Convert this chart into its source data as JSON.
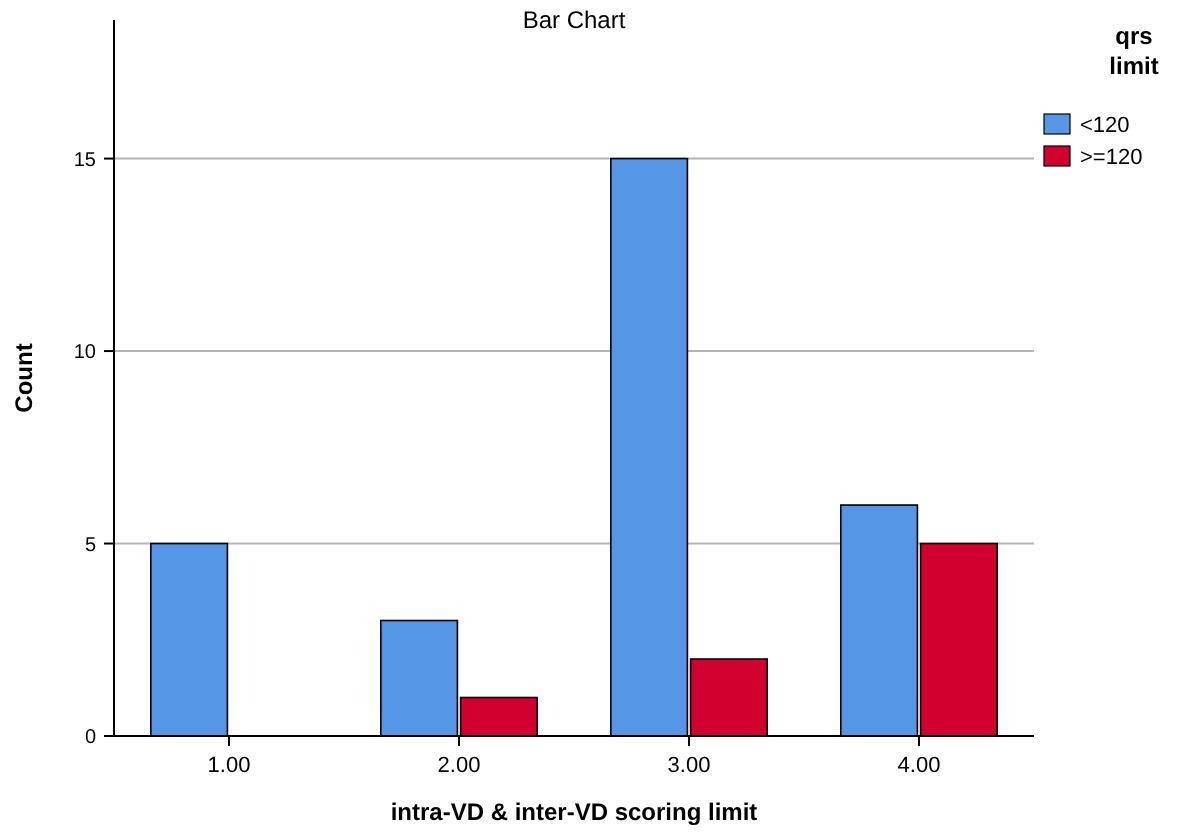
{
  "chart_data": {
    "type": "bar",
    "title": "Bar Chart",
    "xlabel": "intra-VD & inter-VD scoring limit",
    "ylabel": "Count",
    "legend_title": "qrs limit",
    "categories": [
      "1.00",
      "2.00",
      "3.00",
      "4.00"
    ],
    "series": [
      {
        "name": "<120",
        "color": "#5596e6",
        "values": [
          5,
          3,
          15,
          6
        ]
      },
      {
        "name": ">=120",
        "color": "#d2002e",
        "values": [
          null,
          1,
          2,
          5
        ]
      }
    ],
    "ylim": [
      0,
      18.6
    ],
    "yticks": [
      0,
      5,
      10,
      15
    ],
    "grid": "y",
    "legend": "top right"
  }
}
